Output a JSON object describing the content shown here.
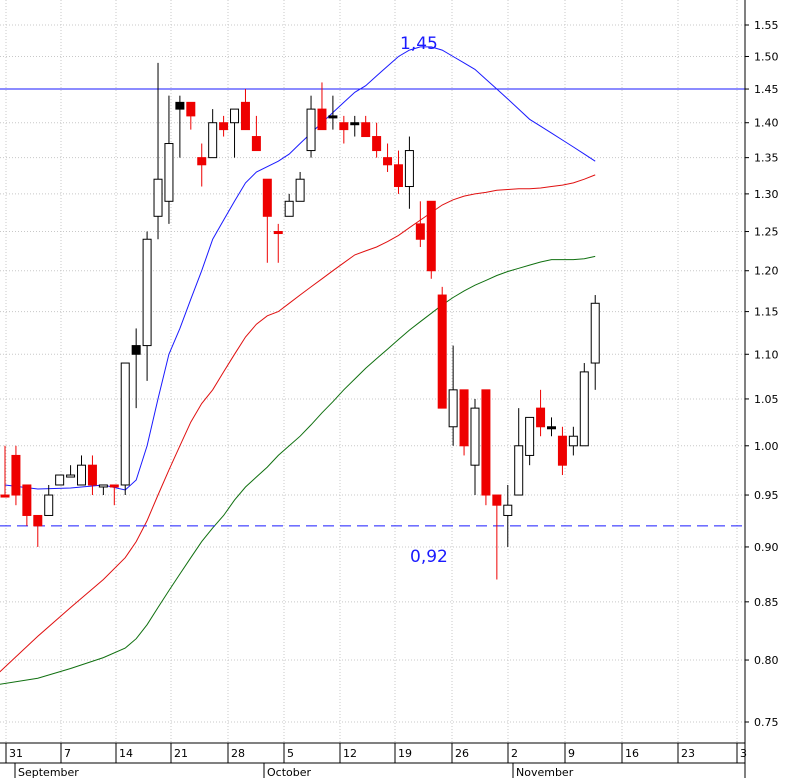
{
  "chart_data": {
    "type": "candlestick",
    "y_axis": {
      "position": "right",
      "ticks": [
        "1.55",
        "1.50",
        "1.45",
        "1.40",
        "1.35",
        "1.30",
        "1.25",
        "1.20",
        "1.15",
        "1.10",
        "1.05",
        "1.00",
        "0.95",
        "0.90",
        "0.85",
        "0.80",
        "0.75"
      ],
      "scale": "log",
      "ylim": [
        0.73,
        1.58
      ]
    },
    "x_axis": {
      "day_ticks": [
        "31",
        "7",
        "14",
        "21",
        "28",
        "5",
        "12",
        "19",
        "26",
        "2",
        "9",
        "16",
        "23",
        "3"
      ],
      "month_labels": [
        "September",
        "October",
        "November"
      ]
    },
    "grid": "vertical dotted lines at week ticks, horizontal dotted lines at price ticks",
    "horizontal_lines": [
      {
        "value": 1.45,
        "label": "1,45",
        "style": "solid",
        "color": "#1a1aff"
      },
      {
        "value": 0.92,
        "label": "0,92",
        "style": "dashed",
        "color": "#1a1aff"
      }
    ],
    "candles": [
      {
        "o": 0.95,
        "h": 1.0,
        "l": 0.95,
        "c": 0.95,
        "dir": "down"
      },
      {
        "o": 0.99,
        "h": 1.0,
        "l": 0.94,
        "c": 0.95,
        "dir": "down"
      },
      {
        "o": 0.96,
        "h": 0.96,
        "l": 0.92,
        "c": 0.93,
        "dir": "down"
      },
      {
        "o": 0.93,
        "h": 0.93,
        "l": 0.9,
        "c": 0.92,
        "dir": "down"
      },
      {
        "o": 0.93,
        "h": 0.96,
        "l": 0.93,
        "c": 0.95,
        "dir": "up"
      },
      {
        "o": 0.96,
        "h": 0.97,
        "l": 0.96,
        "c": 0.97,
        "dir": "up"
      },
      {
        "o": 0.97,
        "h": 0.98,
        "l": 0.97,
        "c": 0.97,
        "dir": "up"
      },
      {
        "o": 0.96,
        "h": 0.99,
        "l": 0.96,
        "c": 0.98,
        "dir": "up"
      },
      {
        "o": 0.98,
        "h": 0.99,
        "l": 0.95,
        "c": 0.96,
        "dir": "down"
      },
      {
        "o": 0.96,
        "h": 0.96,
        "l": 0.95,
        "c": 0.96,
        "dir": "up"
      },
      {
        "o": 0.96,
        "h": 0.96,
        "l": 0.94,
        "c": 0.96,
        "dir": "down"
      },
      {
        "o": 0.96,
        "h": 1.09,
        "l": 0.95,
        "c": 1.09,
        "dir": "up"
      },
      {
        "o": 1.1,
        "h": 1.13,
        "l": 1.04,
        "c": 1.11,
        "dir": "solid"
      },
      {
        "o": 1.11,
        "h": 1.25,
        "l": 1.07,
        "c": 1.24,
        "dir": "up"
      },
      {
        "o": 1.27,
        "h": 1.49,
        "l": 1.24,
        "c": 1.32,
        "dir": "up"
      },
      {
        "o": 1.29,
        "h": 1.44,
        "l": 1.26,
        "c": 1.37,
        "dir": "up"
      },
      {
        "o": 1.43,
        "h": 1.44,
        "l": 1.35,
        "c": 1.42,
        "dir": "solid"
      },
      {
        "o": 1.43,
        "h": 1.43,
        "l": 1.39,
        "c": 1.41,
        "dir": "down"
      },
      {
        "o": 1.35,
        "h": 1.37,
        "l": 1.31,
        "c": 1.34,
        "dir": "down"
      },
      {
        "o": 1.35,
        "h": 1.42,
        "l": 1.35,
        "c": 1.4,
        "dir": "up"
      },
      {
        "o": 1.4,
        "h": 1.41,
        "l": 1.38,
        "c": 1.39,
        "dir": "down"
      },
      {
        "o": 1.4,
        "h": 1.42,
        "l": 1.35,
        "c": 1.42,
        "dir": "up"
      },
      {
        "o": 1.43,
        "h": 1.45,
        "l": 1.39,
        "c": 1.39,
        "dir": "down"
      },
      {
        "o": 1.38,
        "h": 1.41,
        "l": 1.36,
        "c": 1.36,
        "dir": "down"
      },
      {
        "o": 1.32,
        "h": 1.32,
        "l": 1.21,
        "c": 1.27,
        "dir": "down"
      },
      {
        "o": 1.25,
        "h": 1.26,
        "l": 1.21,
        "c": 1.25,
        "dir": "down"
      },
      {
        "o": 1.27,
        "h": 1.3,
        "l": 1.27,
        "c": 1.29,
        "dir": "up"
      },
      {
        "o": 1.29,
        "h": 1.33,
        "l": 1.29,
        "c": 1.32,
        "dir": "up"
      },
      {
        "o": 1.36,
        "h": 1.44,
        "l": 1.35,
        "c": 1.42,
        "dir": "up"
      },
      {
        "o": 1.42,
        "h": 1.46,
        "l": 1.39,
        "c": 1.39,
        "dir": "down"
      },
      {
        "o": 1.41,
        "h": 1.44,
        "l": 1.39,
        "c": 1.41,
        "dir": "solid"
      },
      {
        "o": 1.4,
        "h": 1.41,
        "l": 1.37,
        "c": 1.39,
        "dir": "down"
      },
      {
        "o": 1.4,
        "h": 1.41,
        "l": 1.38,
        "c": 1.4,
        "dir": "solid"
      },
      {
        "o": 1.4,
        "h": 1.41,
        "l": 1.38,
        "c": 1.38,
        "dir": "down"
      },
      {
        "o": 1.38,
        "h": 1.4,
        "l": 1.35,
        "c": 1.36,
        "dir": "down"
      },
      {
        "o": 1.35,
        "h": 1.37,
        "l": 1.33,
        "c": 1.34,
        "dir": "down"
      },
      {
        "o": 1.34,
        "h": 1.36,
        "l": 1.3,
        "c": 1.31,
        "dir": "down"
      },
      {
        "o": 1.31,
        "h": 1.38,
        "l": 1.28,
        "c": 1.36,
        "dir": "up"
      },
      {
        "o": 1.26,
        "h": 1.29,
        "l": 1.23,
        "c": 1.24,
        "dir": "down"
      },
      {
        "o": 1.29,
        "h": 1.29,
        "l": 1.19,
        "c": 1.2,
        "dir": "down"
      },
      {
        "o": 1.17,
        "h": 1.18,
        "l": 1.04,
        "c": 1.04,
        "dir": "down"
      },
      {
        "o": 1.06,
        "h": 1.11,
        "l": 1.0,
        "c": 1.02,
        "dir": "up"
      },
      {
        "o": 1.06,
        "h": 1.06,
        "l": 0.99,
        "c": 1.0,
        "dir": "down"
      },
      {
        "o": 1.04,
        "h": 1.05,
        "l": 0.95,
        "c": 0.98,
        "dir": "up"
      },
      {
        "o": 1.06,
        "h": 1.06,
        "l": 0.94,
        "c": 0.95,
        "dir": "down"
      },
      {
        "o": 0.95,
        "h": 0.95,
        "l": 0.87,
        "c": 0.94,
        "dir": "down"
      },
      {
        "o": 0.93,
        "h": 0.96,
        "l": 0.9,
        "c": 0.94,
        "dir": "up"
      },
      {
        "o": 0.95,
        "h": 1.04,
        "l": 0.95,
        "c": 1.0,
        "dir": "up"
      },
      {
        "o": 0.99,
        "h": 1.03,
        "l": 0.98,
        "c": 1.03,
        "dir": "up"
      },
      {
        "o": 1.04,
        "h": 1.06,
        "l": 1.01,
        "c": 1.02,
        "dir": "down"
      },
      {
        "o": 1.02,
        "h": 1.03,
        "l": 1.01,
        "c": 1.02,
        "dir": "solid"
      },
      {
        "o": 1.01,
        "h": 1.02,
        "l": 0.97,
        "c": 0.98,
        "dir": "down"
      },
      {
        "o": 1.0,
        "h": 1.02,
        "l": 0.99,
        "c": 1.01,
        "dir": "up"
      },
      {
        "o": 1.0,
        "h": 1.09,
        "l": 1.0,
        "c": 1.08,
        "dir": "up"
      },
      {
        "o": 1.09,
        "h": 1.17,
        "l": 1.06,
        "c": 1.16,
        "dir": "up"
      }
    ],
    "moving_averages": [
      {
        "color": "#1a1aff",
        "points": [
          [
            0,
            0.96
          ],
          [
            3,
            0.956
          ],
          [
            6,
            0.957
          ],
          [
            9,
            0.96
          ],
          [
            11,
            0.955
          ],
          [
            12,
            0.965
          ],
          [
            13,
            1.0
          ],
          [
            14,
            1.05
          ],
          [
            15,
            1.1
          ],
          [
            16,
            1.13
          ],
          [
            17,
            1.165
          ],
          [
            18,
            1.2
          ],
          [
            19,
            1.24
          ],
          [
            20,
            1.265
          ],
          [
            21,
            1.29
          ],
          [
            22,
            1.315
          ],
          [
            23,
            1.33
          ],
          [
            25,
            1.345
          ],
          [
            26,
            1.355
          ],
          [
            27,
            1.37
          ],
          [
            28,
            1.385
          ],
          [
            29,
            1.4
          ],
          [
            30,
            1.415
          ],
          [
            31,
            1.43
          ],
          [
            32,
            1.445
          ],
          [
            33,
            1.455
          ],
          [
            34,
            1.47
          ],
          [
            35,
            1.485
          ],
          [
            36,
            1.5
          ],
          [
            37,
            1.51
          ],
          [
            38,
            1.515
          ],
          [
            39,
            1.515
          ],
          [
            40,
            1.51
          ],
          [
            41,
            1.5
          ],
          [
            42,
            1.49
          ],
          [
            43,
            1.48
          ],
          [
            44,
            1.465
          ],
          [
            45,
            1.45
          ],
          [
            46,
            1.435
          ],
          [
            47,
            1.42
          ],
          [
            48,
            1.405
          ],
          [
            49,
            1.395
          ],
          [
            50,
            1.385
          ],
          [
            51,
            1.375
          ],
          [
            52,
            1.365
          ],
          [
            53,
            1.355
          ],
          [
            54,
            1.345
          ]
        ]
      },
      {
        "color": "#e01010",
        "points": [
          [
            -0.5,
            0.79
          ],
          [
            3,
            0.82
          ],
          [
            6,
            0.845
          ],
          [
            9,
            0.87
          ],
          [
            11,
            0.89
          ],
          [
            12,
            0.905
          ],
          [
            13,
            0.925
          ],
          [
            14,
            0.95
          ],
          [
            15,
            0.975
          ],
          [
            16,
            1.0
          ],
          [
            17,
            1.025
          ],
          [
            18,
            1.045
          ],
          [
            19,
            1.06
          ],
          [
            20,
            1.08
          ],
          [
            21,
            1.1
          ],
          [
            22,
            1.12
          ],
          [
            23,
            1.135
          ],
          [
            24,
            1.145
          ],
          [
            25,
            1.15
          ],
          [
            26,
            1.16
          ],
          [
            27,
            1.17
          ],
          [
            28,
            1.18
          ],
          [
            29,
            1.19
          ],
          [
            30,
            1.2
          ],
          [
            31,
            1.21
          ],
          [
            32,
            1.22
          ],
          [
            33,
            1.225
          ],
          [
            34,
            1.23
          ],
          [
            35,
            1.237
          ],
          [
            36,
            1.245
          ],
          [
            37,
            1.255
          ],
          [
            38,
            1.265
          ],
          [
            39,
            1.275
          ],
          [
            40,
            1.285
          ],
          [
            41,
            1.292
          ],
          [
            42,
            1.297
          ],
          [
            43,
            1.3
          ],
          [
            44,
            1.302
          ],
          [
            45,
            1.305
          ],
          [
            46,
            1.306
          ],
          [
            47,
            1.307
          ],
          [
            48,
            1.307
          ],
          [
            49,
            1.308
          ],
          [
            50,
            1.31
          ],
          [
            51,
            1.312
          ],
          [
            52,
            1.315
          ],
          [
            53,
            1.32
          ],
          [
            54,
            1.326
          ]
        ]
      },
      {
        "color": "#107010",
        "points": [
          [
            -0.5,
            0.78
          ],
          [
            3,
            0.785
          ],
          [
            6,
            0.793
          ],
          [
            9,
            0.802
          ],
          [
            11,
            0.81
          ],
          [
            12,
            0.818
          ],
          [
            13,
            0.83
          ],
          [
            14,
            0.845
          ],
          [
            15,
            0.86
          ],
          [
            16,
            0.875
          ],
          [
            17,
            0.89
          ],
          [
            18,
            0.905
          ],
          [
            19,
            0.918
          ],
          [
            20,
            0.93
          ],
          [
            21,
            0.945
          ],
          [
            22,
            0.958
          ],
          [
            23,
            0.968
          ],
          [
            24,
            0.978
          ],
          [
            25,
            0.99
          ],
          [
            26,
            1.0
          ],
          [
            27,
            1.01
          ],
          [
            28,
            1.022
          ],
          [
            29,
            1.035
          ],
          [
            30,
            1.047
          ],
          [
            31,
            1.06
          ],
          [
            32,
            1.072
          ],
          [
            33,
            1.084
          ],
          [
            34,
            1.095
          ],
          [
            35,
            1.106
          ],
          [
            36,
            1.117
          ],
          [
            37,
            1.128
          ],
          [
            38,
            1.138
          ],
          [
            39,
            1.148
          ],
          [
            40,
            1.158
          ],
          [
            41,
            1.167
          ],
          [
            42,
            1.175
          ],
          [
            43,
            1.182
          ],
          [
            44,
            1.188
          ],
          [
            45,
            1.194
          ],
          [
            46,
            1.199
          ],
          [
            47,
            1.203
          ],
          [
            48,
            1.207
          ],
          [
            49,
            1.211
          ],
          [
            50,
            1.214
          ],
          [
            51,
            1.214
          ],
          [
            52,
            1.214
          ],
          [
            53,
            1.215
          ],
          [
            54,
            1.218
          ]
        ]
      }
    ]
  }
}
